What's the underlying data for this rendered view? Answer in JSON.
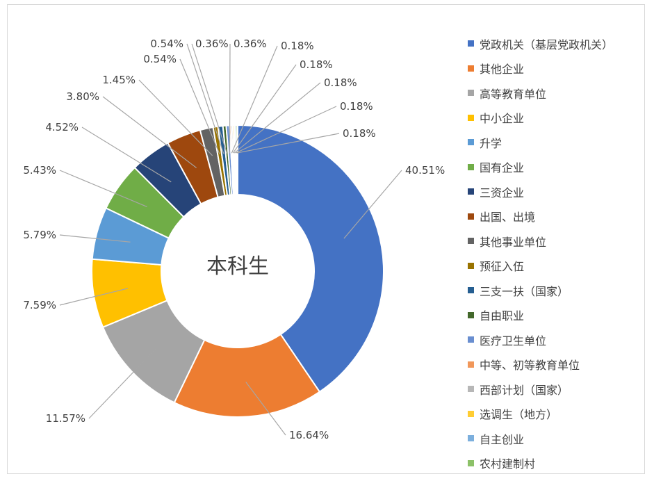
{
  "chart_data": {
    "type": "donut",
    "center_label": "本科生",
    "colors": [
      "#4472C4",
      "#ED7D31",
      "#A5A5A5",
      "#FFC000",
      "#5B9BD5",
      "#70AD47",
      "#264478",
      "#9E480E",
      "#636363",
      "#997300",
      "#255E91",
      "#43682B",
      "#698ED0",
      "#F1975A",
      "#B7B7B7",
      "#FFCD33",
      "#7CAFDD",
      "#8CC168"
    ],
    "categories": [
      "党政机关（基层党政机关）",
      "其他企业",
      "高等教育单位",
      "中小企业",
      "升学",
      "国有企业",
      "三资企业",
      "出国、出境",
      "其他事业单位",
      "预征入伍",
      "三支一扶（国家）",
      "自由职业",
      "医疗卫生单位",
      "中等、初等教育单位",
      "西部计划（国家）",
      "选调生（地方）",
      "自主创业",
      "农村建制村"
    ],
    "values": [
      40.51,
      16.64,
      11.57,
      7.59,
      5.79,
      5.43,
      4.52,
      3.8,
      1.45,
      0.54,
      0.54,
      0.36,
      0.36,
      0.18,
      0.18,
      0.18,
      0.18,
      0.18
    ],
    "data_labels": [
      "40.51%",
      "16.64%",
      "11.57%",
      "7.59%",
      "5.79%",
      "5.43%",
      "4.52%",
      "3.80%",
      "1.45%",
      "0.54%",
      "0.54%",
      "0.36%",
      "0.36%",
      "0.18%",
      "0.18%",
      "0.18%",
      "0.18%",
      "0.18%"
    ],
    "legend_position": "right"
  }
}
